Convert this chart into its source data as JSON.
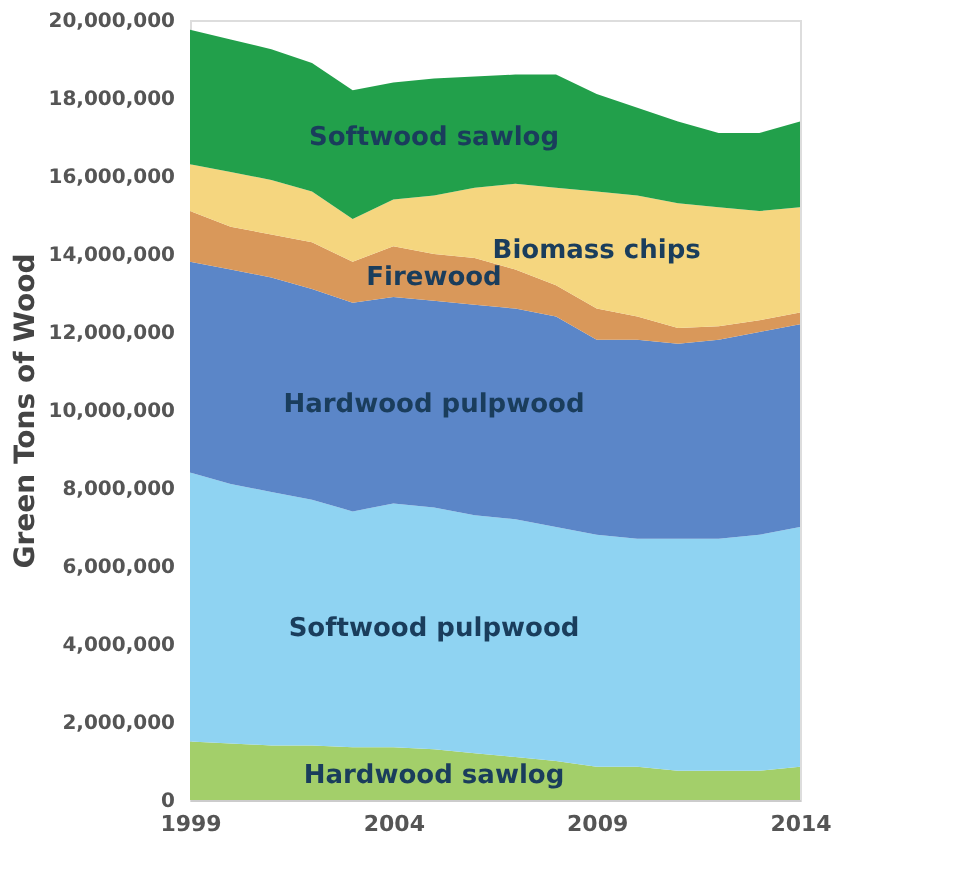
{
  "chart_data": {
    "type": "area",
    "stacked": true,
    "ylabel": "Green Tons of Wood",
    "x": [
      1999,
      2000,
      2001,
      2002,
      2003,
      2004,
      2005,
      2006,
      2007,
      2008,
      2009,
      2010,
      2011,
      2012,
      2013,
      2014
    ],
    "xlim": [
      1999,
      2014
    ],
    "xticks": [
      1999,
      2004,
      2009,
      2014
    ],
    "ylim": [
      0,
      20000000
    ],
    "yticks": [
      0,
      {
        "value": 2000000,
        "label": "2,000,000"
      },
      {
        "value": 4000000,
        "label": "4,000,000"
      },
      {
        "value": 6000000,
        "label": "6,000,000"
      },
      {
        "value": 8000000,
        "label": "8,000,000"
      },
      {
        "value": 10000000,
        "label": "10,000,000"
      },
      {
        "value": 12000000,
        "label": "12,000,000"
      },
      {
        "value": 14000000,
        "label": "14,000,000"
      },
      {
        "value": 16000000,
        "label": "16,000,000"
      },
      {
        "value": 18000000,
        "label": "18,000,000"
      },
      {
        "value": 20000000,
        "label": "20,000,000"
      }
    ],
    "grid": false,
    "legend": false,
    "series": [
      {
        "name": "Hardwood sawlog",
        "color": "#a3cf6a",
        "values": [
          1500000,
          1450000,
          1400000,
          1400000,
          1350000,
          1350000,
          1300000,
          1200000,
          1100000,
          1000000,
          850000,
          850000,
          750000,
          750000,
          750000,
          850000
        ]
      },
      {
        "name": "Softwood pulpwood",
        "color": "#8fd3f2",
        "values": [
          6900000,
          6650000,
          6500000,
          6300000,
          6050000,
          6250000,
          6200000,
          6100000,
          6100000,
          6000000,
          5950000,
          5850000,
          5950000,
          5950000,
          6050000,
          6150000
        ]
      },
      {
        "name": "Hardwood pulpwood",
        "color": "#5b86c8",
        "values": [
          5400000,
          5500000,
          5500000,
          5400000,
          5350000,
          5300000,
          5300000,
          5400000,
          5400000,
          5400000,
          5000000,
          5100000,
          5000000,
          5100000,
          5200000,
          5200000
        ]
      },
      {
        "name": "Firewood",
        "color": "#d9985a",
        "values": [
          1300000,
          1100000,
          1100000,
          1200000,
          1050000,
          1300000,
          1200000,
          1200000,
          1000000,
          800000,
          800000,
          600000,
          400000,
          350000,
          300000,
          300000
        ]
      },
      {
        "name": "Biomass chips",
        "color": "#f5d67f",
        "values": [
          1200000,
          1400000,
          1400000,
          1300000,
          1100000,
          1200000,
          1500000,
          1800000,
          2200000,
          2500000,
          3000000,
          3100000,
          3200000,
          3050000,
          2800000,
          2700000
        ]
      },
      {
        "name": "Softwood sawlog",
        "color": "#22a04b",
        "values": [
          3450000,
          3400000,
          3350000,
          3300000,
          3300000,
          3000000,
          3000000,
          2850000,
          2800000,
          2900000,
          2500000,
          2250000,
          2100000,
          1900000,
          2000000,
          2200000
        ]
      }
    ]
  }
}
